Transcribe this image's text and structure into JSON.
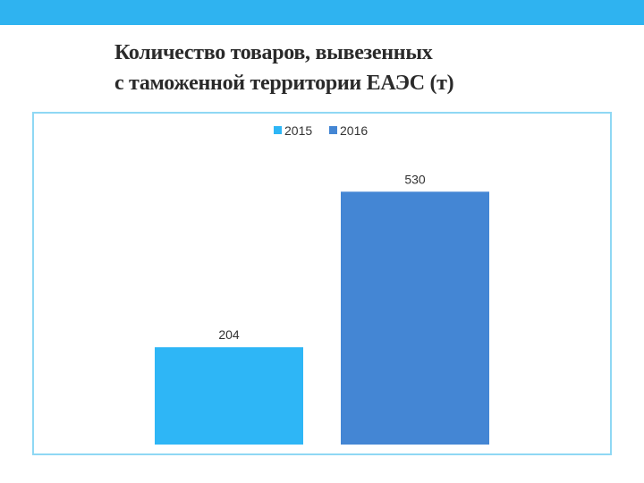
{
  "slide": {
    "accent_color": "#2fb3f0"
  },
  "title": {
    "line1": "Количество товаров, вывезенных",
    "line2": "с таможенной территории ЕАЭС (т)"
  },
  "chart_data": {
    "type": "bar",
    "title": "Количество товаров, вывезенных с таможенной территории ЕАЭС (т)",
    "series": [
      {
        "name": "2015",
        "values": [
          204
        ],
        "color": "#2eb6f6"
      },
      {
        "name": "2016",
        "values": [
          530
        ],
        "color": "#4486d4"
      }
    ],
    "categories": [
      ""
    ],
    "legend": "top",
    "grid": false,
    "ylim": [
      0,
      600
    ]
  }
}
